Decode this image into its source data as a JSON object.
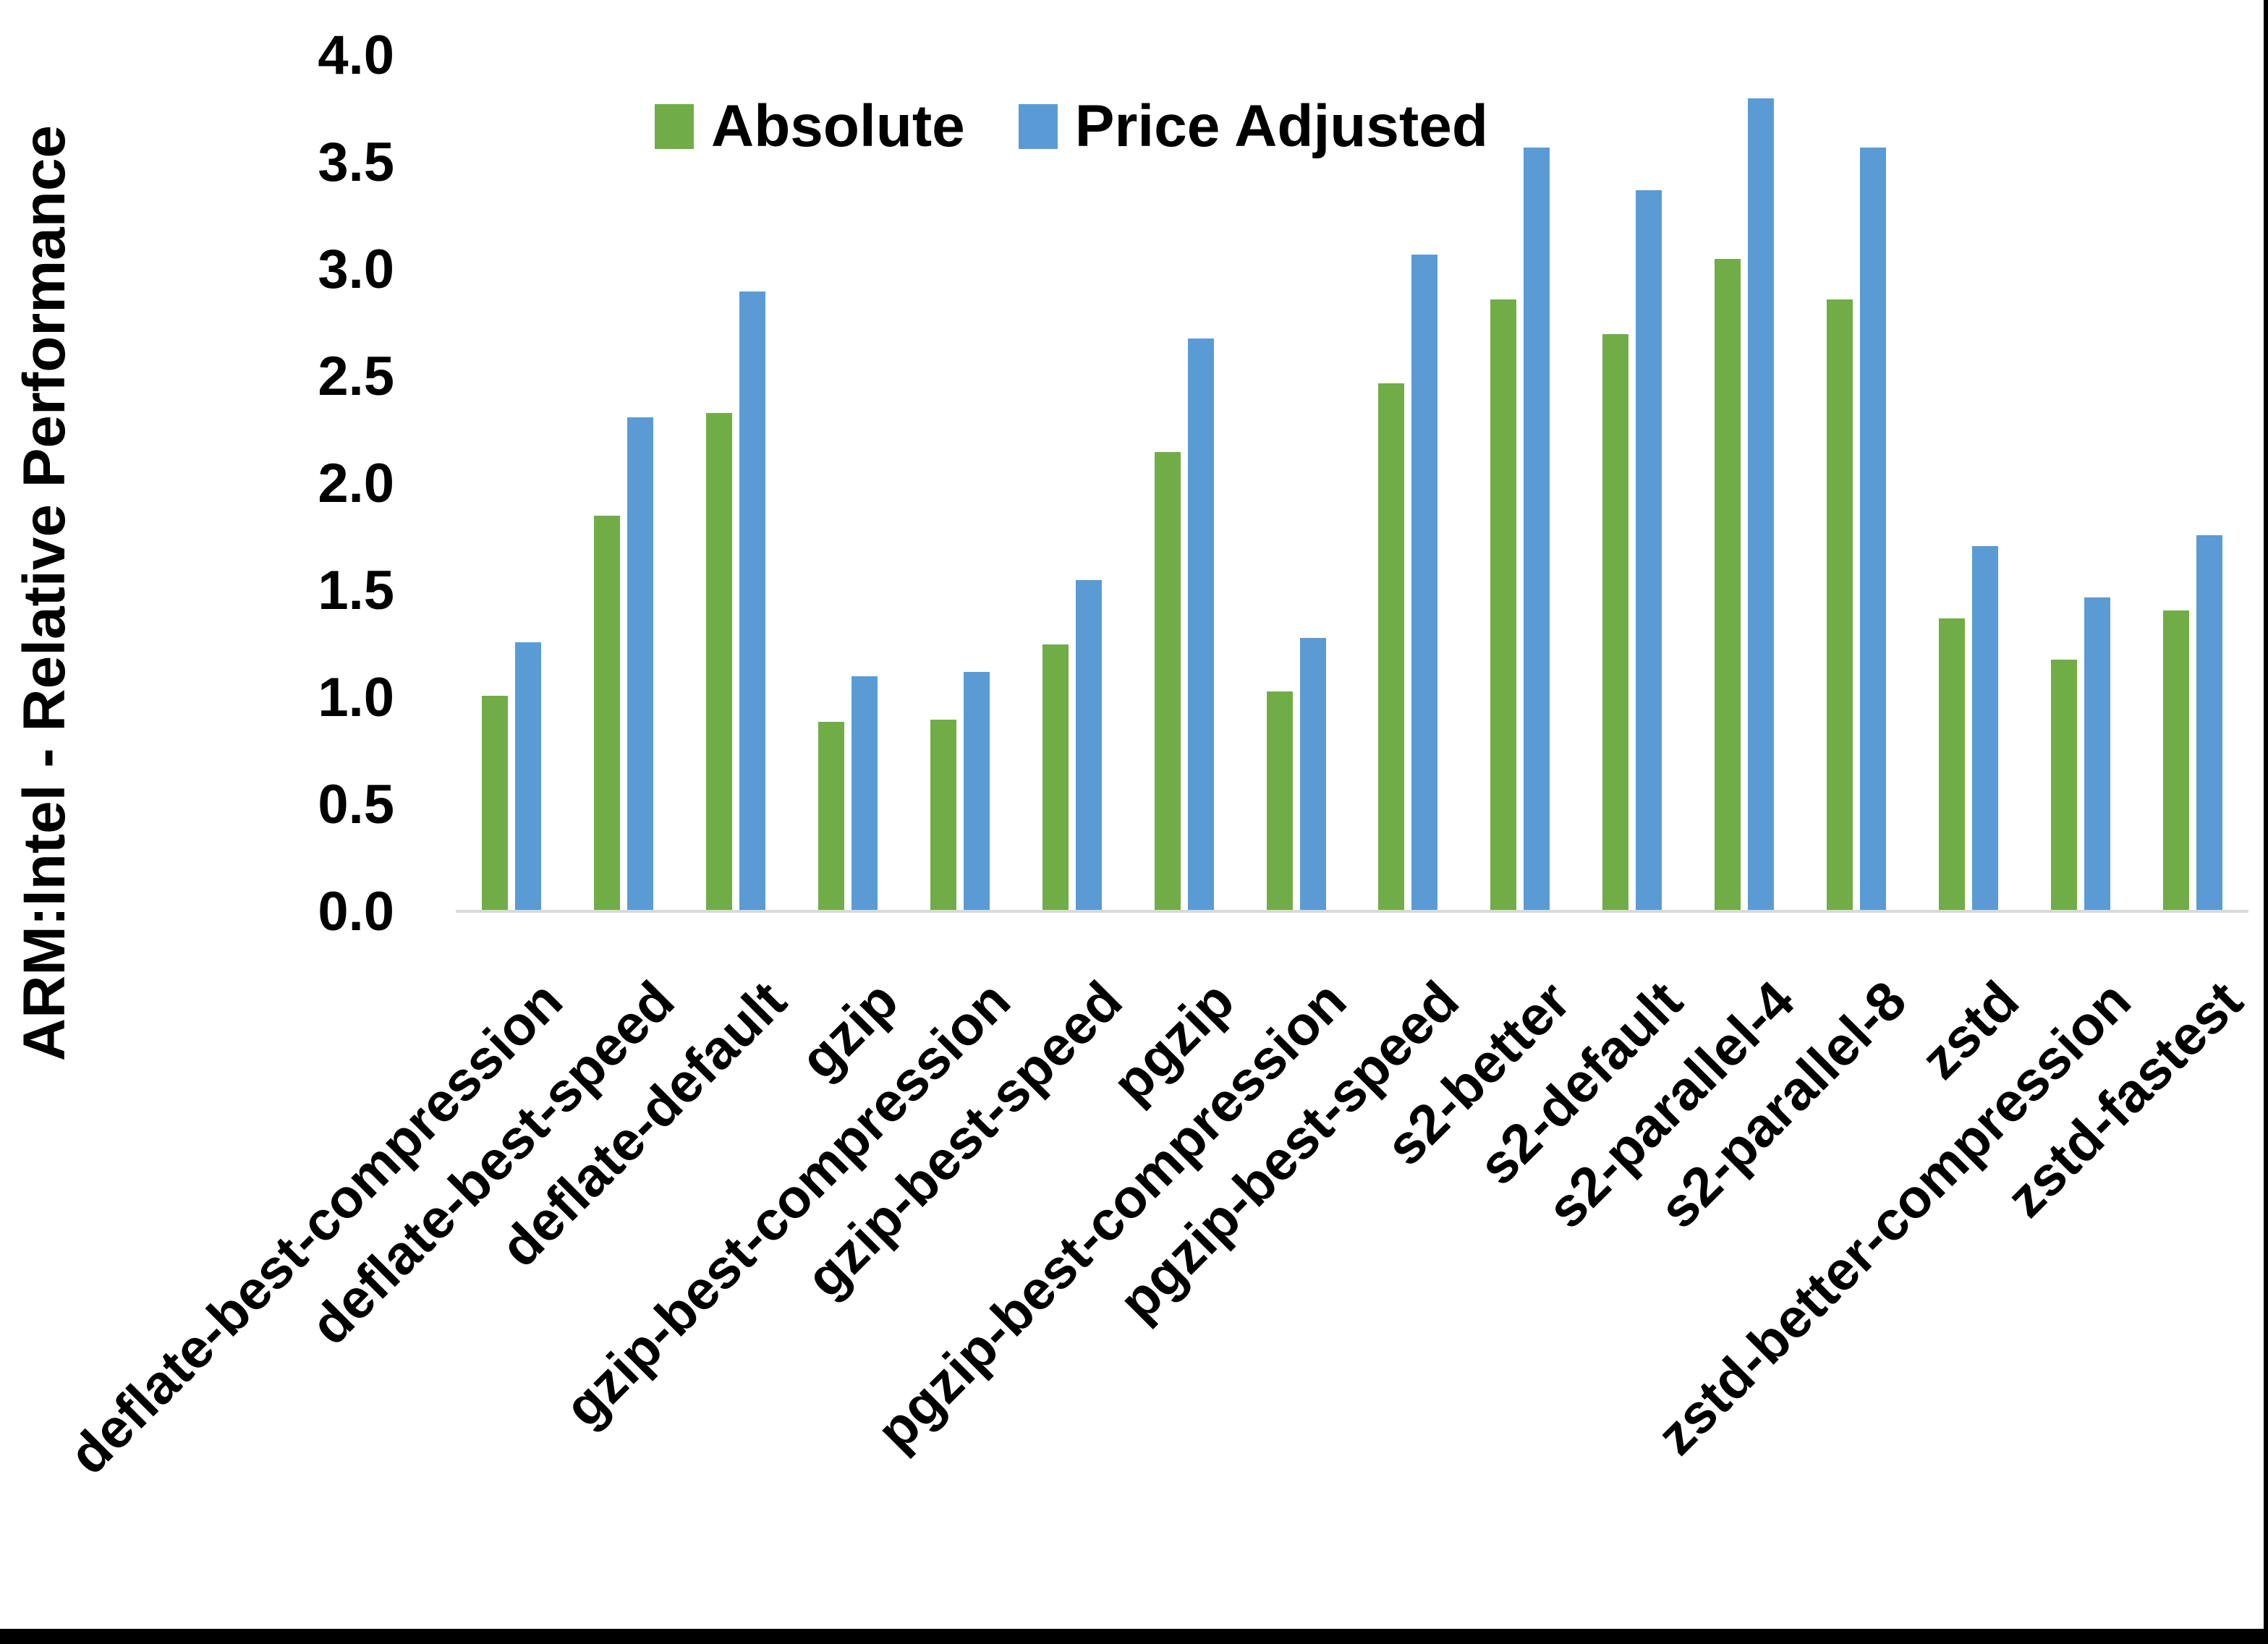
{
  "chart_data": {
    "type": "bar",
    "title": "",
    "xlabel": "",
    "ylabel": "ARM:Intel - Relative Performance",
    "ylim": [
      0.0,
      4.0
    ],
    "y_ticks": [
      "0.0",
      "0.5",
      "1.0",
      "1.5",
      "2.0",
      "2.5",
      "3.0",
      "3.5",
      "4.0"
    ],
    "grid": false,
    "legend_position": "top-center",
    "axis_line_color": "#d9d9d9",
    "categories": [
      "deflate-best-compression",
      "deflate-best-speed",
      "deflate-default",
      "gzip",
      "gzip-best-compression",
      "gzip-best-speed",
      "pgzip",
      "pgzip-best-compression",
      "pgzip-best-speed",
      "s2-better",
      "s2-default",
      "s2-parallel-4",
      "s2-parallel-8",
      "zstd",
      "zstd-better-compression",
      "zstd-fastest"
    ],
    "series": [
      {
        "name": "Absolute",
        "color": "#70AD47",
        "values": [
          1.01,
          1.85,
          2.33,
          0.89,
          0.9,
          1.25,
          2.15,
          1.03,
          2.47,
          2.86,
          2.7,
          3.05,
          2.86,
          1.37,
          1.18,
          1.41
        ]
      },
      {
        "name": "Price Adjusted",
        "color": "#5B9BD5",
        "values": [
          1.26,
          2.31,
          2.9,
          1.1,
          1.12,
          1.55,
          2.68,
          1.28,
          3.07,
          3.57,
          3.37,
          3.8,
          3.57,
          1.71,
          1.47,
          1.76
        ]
      }
    ],
    "frame_border_color": "#000000"
  }
}
